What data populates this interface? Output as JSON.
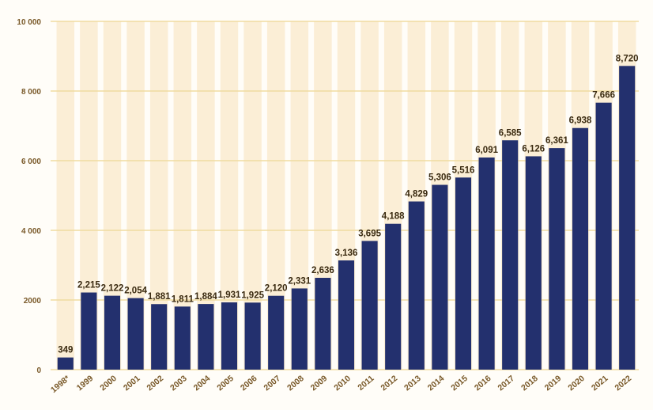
{
  "chart_data": {
    "type": "bar",
    "categories": [
      "1998*",
      "1999",
      "2000",
      "2001",
      "2002",
      "2003",
      "2004",
      "2005",
      "2006",
      "2007",
      "2008",
      "2009",
      "2010",
      "2011",
      "2012",
      "2013",
      "2014",
      "2015",
      "2016",
      "2017",
      "2018",
      "2019",
      "2020",
      "2021",
      "2022"
    ],
    "values": [
      349,
      2215,
      2122,
      2054,
      1881,
      1811,
      1884,
      1931,
      1925,
      2120,
      2331,
      2636,
      3136,
      3695,
      4188,
      4829,
      5306,
      5516,
      6091,
      6585,
      6126,
      6361,
      6938,
      7666,
      8720
    ],
    "data_labels": [
      "349",
      "2,215",
      "2,122",
      "2,054",
      "1,881",
      "1,811",
      "1,884",
      "1,931",
      "1,925",
      "2,120",
      "2,331",
      "2,636",
      "3,136",
      "3,695",
      "4,188",
      "4,829",
      "5,306",
      "5,516",
      "6,091",
      "6,585",
      "6,126",
      "6,361",
      "6,938",
      "7,666",
      "8,720"
    ],
    "ytick_labels": [
      "0",
      "2000",
      "4 000",
      "6 000",
      "8 000",
      "10 000"
    ],
    "ytick_values": [
      0,
      2000,
      4000,
      6000,
      8000,
      10000
    ],
    "ylim": [
      0,
      10000
    ],
    "title": "",
    "xlabel": "",
    "ylabel": "",
    "grid": true,
    "colors": {
      "bar": "#23306e",
      "gridline": "#f0dca0",
      "stripe": "#fbeed6",
      "background": "#fffdf8"
    }
  }
}
